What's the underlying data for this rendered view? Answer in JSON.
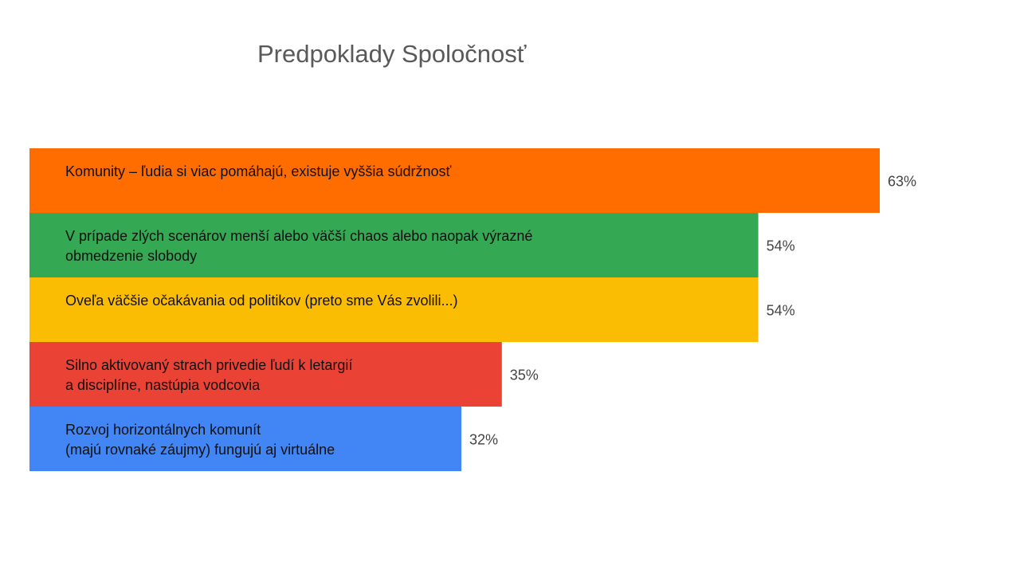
{
  "chart_data": {
    "type": "bar",
    "orientation": "horizontal",
    "title": "Predpoklady Spoločnosť",
    "xlabel": "",
    "ylabel": "",
    "xlim": [
      0,
      63
    ],
    "grid": false,
    "legend": "none",
    "categories": [
      "Komunity – ľudia si viac pomáhajú, existuje vyššia súdržnosť",
      "V prípade zlých scenárov menší alebo väčší chaos alebo naopak výrazné obmedzenie slobody",
      "Oveľa väčšie očakávania od politikov (preto sme Vás zvolili...)",
      "Silno aktivovaný strach privedie ľudí k letargií a disciplíne,  nastúpia vodcovia",
      "Rozvoj horizontálnych komunít (majú rovnaké záujmy)  fungujú  aj virtuálne"
    ],
    "category_lines": [
      [
        "Komunity – ľudia si viac pomáhajú, existuje vyššia súdržnosť"
      ],
      [
        "V prípade zlých scenárov menší alebo väčší chaos alebo naopak výrazné",
        "obmedzenie slobody"
      ],
      [
        "Oveľa väčšie očakávania od politikov (preto sme Vás zvolili...)"
      ],
      [
        "Silno aktivovaný strach privedie ľudí k letargií",
        "a disciplíne,  nastúpia vodcovia"
      ],
      [
        "Rozvoj horizontálnych komunít",
        "(majú rovnaké záujmy)  fungujú  aj virtuálne"
      ]
    ],
    "values": [
      63,
      54,
      54,
      35,
      32
    ],
    "value_labels": [
      "63%",
      "54%",
      "54%",
      "35%",
      "32%"
    ],
    "colors": [
      "#ff6d01",
      "#34a853",
      "#fbbc04",
      "#ea4335",
      "#4285f4"
    ]
  }
}
